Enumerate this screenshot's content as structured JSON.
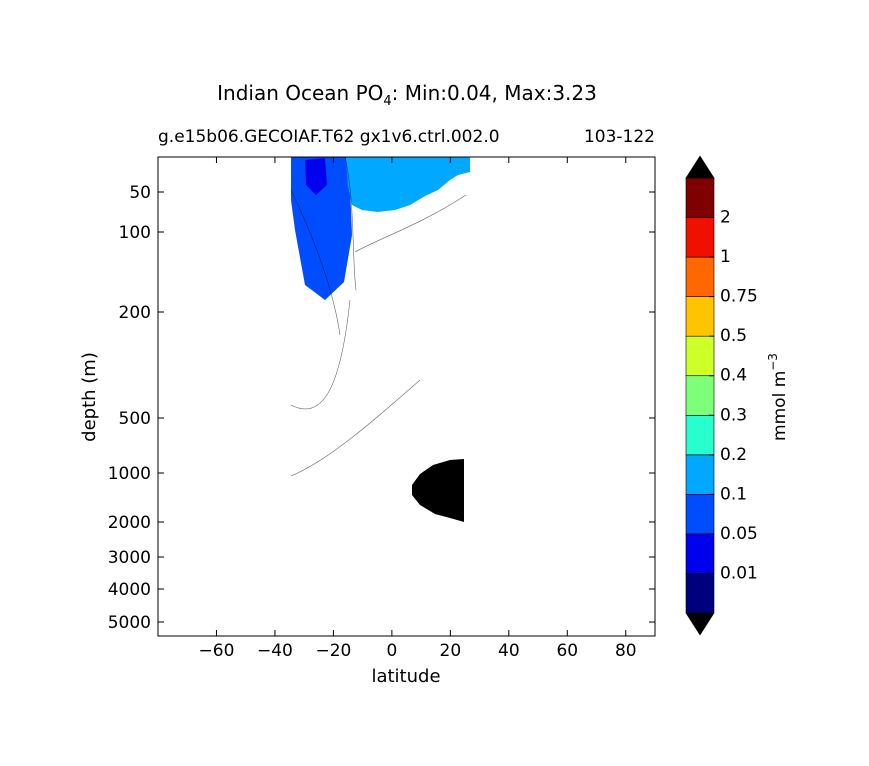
{
  "chart_data": {
    "type": "heatmap",
    "title_main": "Indian Ocean PO",
    "title_sub_index": "4",
    "title_rest": ": Min:0.04, Max:3.23",
    "subtitle_left": "g.e15b06.GECOIAF.T62 gx1v6.ctrl.002.0",
    "subtitle_right": "103-122",
    "xlabel": "latitude",
    "ylabel": "depth (m)",
    "xlim": [
      -80,
      90
    ],
    "ylim": [
      5500,
      15
    ],
    "x_ticks": [
      -60,
      -40,
      -20,
      0,
      20,
      40,
      60,
      80
    ],
    "x_tick_labels": [
      "−60",
      "−40",
      "−20",
      "0",
      "20",
      "40",
      "60",
      "80"
    ],
    "y_ticks": [
      50,
      100,
      200,
      500,
      1000,
      2000,
      3000,
      4000,
      5000
    ],
    "y_tick_labels": [
      "50",
      "100",
      "200",
      "500",
      "1000",
      "2000",
      "3000",
      "4000",
      "5000"
    ],
    "colorbar": {
      "label": "mmol m",
      "label_sup": "−3",
      "levels": [
        "0.01",
        "0.05",
        "0.1",
        "0.2",
        "0.3",
        "0.4",
        "0.5",
        "0.75",
        "1",
        "2"
      ],
      "colors": [
        "#00007f",
        "#0000ef",
        "#004dff",
        "#00a9ff",
        "#29ffce",
        "#7dff7a",
        "#ceff29",
        "#ffc400",
        "#ff6800",
        "#f01000",
        "#7f0000"
      ],
      "extend": "both",
      "extend_min_color": "#000000",
      "extend_max_color": "#000000"
    },
    "domain_lat": [
      -33,
      26
    ],
    "min": 0.04,
    "max": 3.23
  }
}
